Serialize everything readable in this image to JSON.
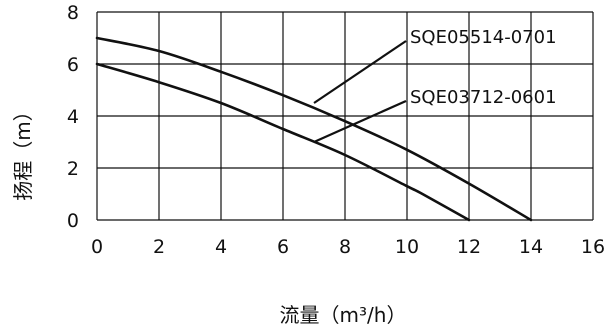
{
  "chart_data": {
    "type": "line",
    "xlabel": "流量（m³/h）",
    "ylabel": "扬程（m）",
    "xlim": [
      0,
      16
    ],
    "ylim": [
      0,
      8
    ],
    "xticks": [
      "0",
      "2",
      "4",
      "6",
      "8",
      "10",
      "12",
      "14",
      "16"
    ],
    "yticks": [
      "0",
      "2",
      "4",
      "6",
      "8"
    ],
    "grid": true,
    "series": [
      {
        "name": "SQE05514-0701",
        "x": [
          0,
          2,
          4,
          6,
          8,
          10,
          12,
          14
        ],
        "y": [
          7.0,
          6.5,
          5.7,
          4.8,
          3.8,
          2.7,
          1.4,
          0
        ],
        "label_anchor": [
          7,
          4.5
        ]
      },
      {
        "name": "SQE03712-0601",
        "x": [
          0,
          2,
          4,
          6,
          8,
          10,
          10.5,
          12
        ],
        "y": [
          6.0,
          5.3,
          4.5,
          3.5,
          2.5,
          1.3,
          1.0,
          0
        ],
        "label_anchor": [
          7,
          3.0
        ]
      }
    ],
    "colors": {
      "line": "#111111",
      "background": "#ffffff"
    }
  }
}
